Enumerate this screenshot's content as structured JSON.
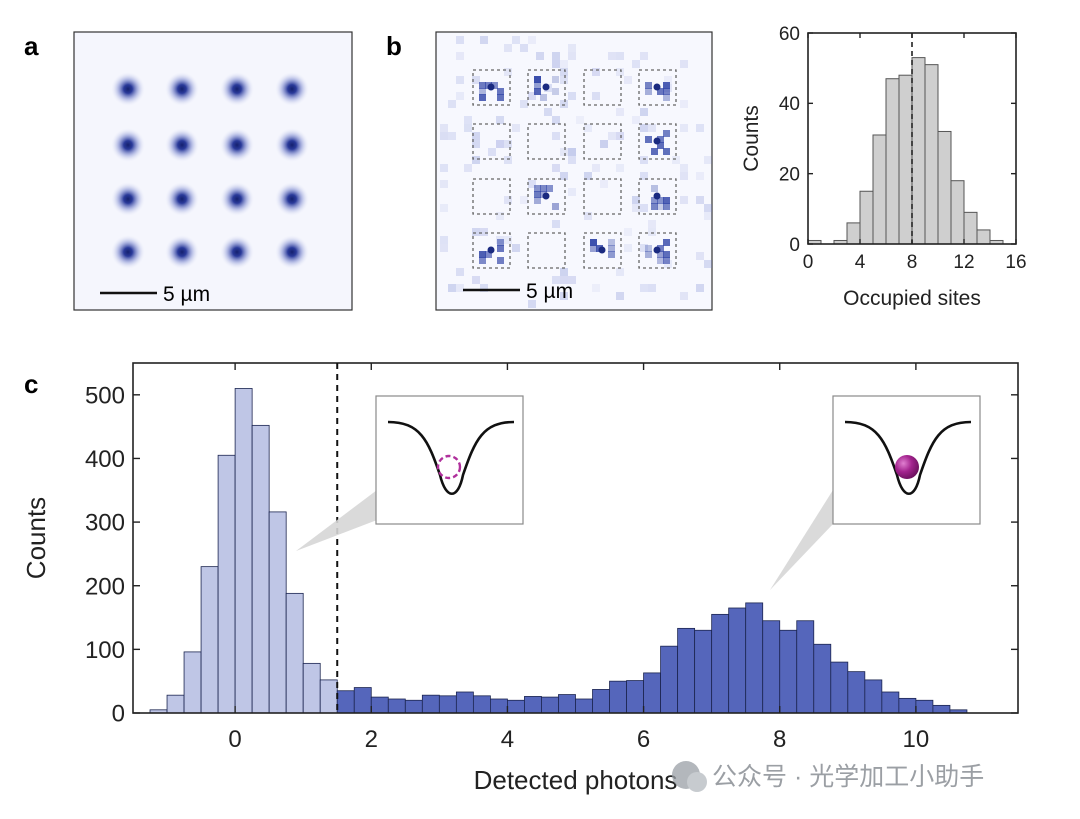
{
  "panel_labels": {
    "a": "a",
    "b": "b",
    "c": "c"
  },
  "images": {
    "a": {
      "scale_bar_label": "5 µm",
      "grid": "4x4",
      "dot_color": "#1f2f86",
      "background": "#f5f6fd"
    },
    "b": {
      "scale_bar_label": "5 µm",
      "grid": "4x4",
      "occupied": [
        [
          true,
          true,
          false,
          true
        ],
        [
          false,
          false,
          false,
          true
        ],
        [
          false,
          true,
          false,
          true
        ],
        [
          true,
          false,
          true,
          true
        ]
      ],
      "box_style": "dashed"
    }
  },
  "watermark": "公众号 · 光学加工小助手",
  "chart_data": [
    {
      "id": "b-hist",
      "type": "bar",
      "title": "",
      "xlabel": "Occupied sites",
      "ylabel": "Counts",
      "xlim": [
        0,
        16
      ],
      "ylim": [
        0,
        60
      ],
      "xticks": [
        0,
        4,
        8,
        12,
        16
      ],
      "yticks": [
        0,
        20,
        40,
        60
      ],
      "bin_width": 1,
      "bin_left_edges": [
        0,
        1,
        2,
        3,
        4,
        5,
        6,
        7,
        8,
        9,
        10,
        11,
        12,
        13,
        14
      ],
      "values": [
        1,
        0,
        1,
        6,
        15,
        31,
        47,
        48,
        53,
        51,
        32,
        18,
        9,
        4,
        1
      ],
      "mean_line_x": 8,
      "fill": "#cfcfcf",
      "edge": "#555555"
    },
    {
      "id": "c-hist",
      "type": "bar",
      "title": "",
      "xlabel": "Detected photons",
      "ylabel": "Counts",
      "xlim": [
        -1.5,
        11.5
      ],
      "ylim": [
        0,
        550
      ],
      "xticks": [
        0,
        2,
        4,
        6,
        8,
        10
      ],
      "yticks": [
        0,
        100,
        200,
        300,
        400,
        500
      ],
      "bin_width": 0.25,
      "bin_left_edges": [
        -1.25,
        -1.0,
        -0.75,
        -0.5,
        -0.25,
        0.0,
        0.25,
        0.5,
        0.75,
        1.0,
        1.25,
        1.5,
        1.75,
        2.0,
        2.25,
        2.5,
        2.75,
        3.0,
        3.25,
        3.5,
        3.75,
        4.0,
        4.25,
        4.5,
        4.75,
        5.0,
        5.25,
        5.5,
        5.75,
        6.0,
        6.25,
        6.5,
        6.75,
        7.0,
        7.25,
        7.5,
        7.75,
        8.0,
        8.25,
        8.5,
        8.75,
        9.0,
        9.25,
        9.5,
        9.75,
        10.0,
        10.25,
        10.5
      ],
      "values": [
        5,
        28,
        96,
        230,
        405,
        510,
        452,
        316,
        188,
        78,
        52,
        35,
        40,
        25,
        22,
        20,
        28,
        27,
        33,
        27,
        22,
        20,
        26,
        25,
        29,
        22,
        37,
        50,
        51,
        63,
        105,
        133,
        130,
        155,
        165,
        173,
        145,
        130,
        145,
        108,
        80,
        65,
        52,
        33,
        23,
        20,
        12,
        5
      ],
      "threshold_x": 1.5,
      "series": [
        {
          "name": "below threshold",
          "color": "#bfc6e6",
          "range": [
            -1.5,
            1.5
          ]
        },
        {
          "name": "above threshold",
          "color": "#5566bb",
          "range": [
            1.5,
            11.5
          ]
        }
      ],
      "insets": [
        {
          "name": "empty-trap",
          "atom": "dashed-circle",
          "color": "#b0309c"
        },
        {
          "name": "filled-trap",
          "atom": "filled-sphere",
          "color": "#9b1f86"
        }
      ]
    }
  ]
}
